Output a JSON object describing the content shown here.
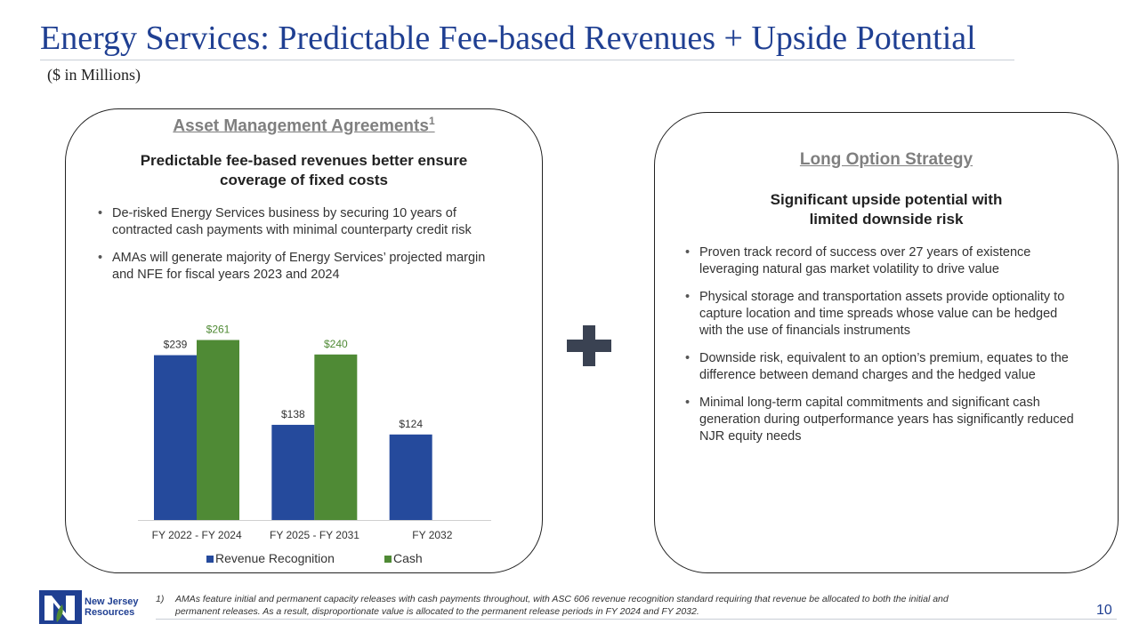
{
  "header": {
    "title": "Energy Services: Predictable Fee-based Revenues + Upside Potential",
    "subtitle": "($ in Millions)"
  },
  "left_panel": {
    "heading": "Asset Management Agreements",
    "heading_sup": "1",
    "subheading_line1": "Predictable fee-based revenues better ensure",
    "subheading_line2": "coverage of fixed costs",
    "bullets": [
      "De-risked Energy Services business by securing 10 years of contracted cash payments with minimal counterparty credit risk",
      "AMAs will generate majority of Energy Services’ projected margin and NFE for fiscal years 2023 and 2024"
    ]
  },
  "right_panel": {
    "heading": "Long Option Strategy",
    "subheading_line1": "Significant upside potential with",
    "subheading_line2": "limited downside risk",
    "bullets": [
      "Proven track record of success over 27 years of existence leveraging natural gas market volatility to drive value",
      "Physical storage and transportation assets provide optionality to capture location and time spreads whose value can be hedged with the use of financials instruments",
      "Downside risk, equivalent to an option’s premium, equates to the difference between demand charges and the hedged value",
      "Minimal long-term capital commitments and significant cash generation during outperformance years has significantly reduced NJR equity needs"
    ]
  },
  "plus_icon": "plus-icon",
  "chart_data": {
    "type": "bar",
    "categories": [
      "FY 2022 - FY 2024",
      "FY 2025 - FY 2031",
      "FY 2032"
    ],
    "series": [
      {
        "name": "Revenue Recognition",
        "values": [
          239,
          138,
          124
        ],
        "labels": [
          "$239",
          "$138",
          "$124"
        ],
        "color": "#254a9c"
      },
      {
        "name": "Cash",
        "values": [
          261,
          240,
          null
        ],
        "labels": [
          "$261",
          "$240",
          ""
        ],
        "color": "#4f8a35"
      }
    ],
    "title": "",
    "xlabel": "",
    "ylabel": "",
    "ylim": [
      0,
      290
    ],
    "legend_position": "bottom"
  },
  "footnote": {
    "number": "1)",
    "text": "AMAs feature initial and permanent capacity releases with cash payments throughout, with ASC 606 revenue recognition standard requiring that revenue be allocated to both the initial and permanent releases. As a result, disproportionate value is allocated to the permanent release periods in FY 2024 and FY 2032."
  },
  "footer": {
    "page_number": "10",
    "logo_line1": "New Jersey",
    "logo_line2": "Resources",
    "logo_icon": "njr-logo-icon",
    "brand_blue": "#1f3f92",
    "brand_green": "#4f8a35"
  }
}
